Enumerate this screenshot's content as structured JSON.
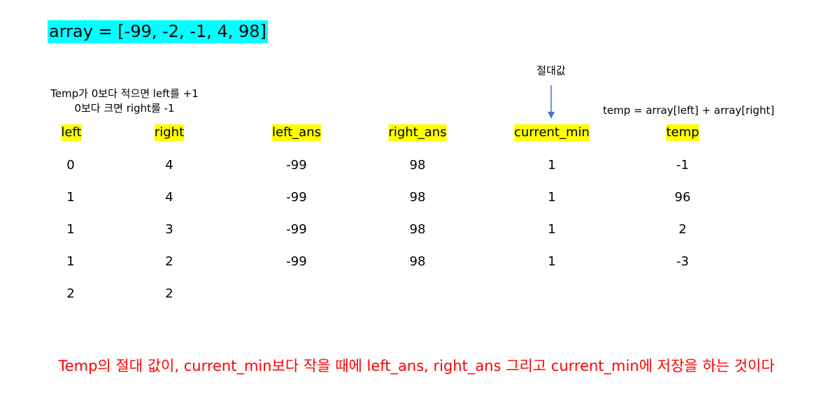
{
  "array_label": "array = [-99, -2, -1, 4, 98]",
  "notes": {
    "left_line1": "Temp가 0보다 적으면 left를 +1",
    "left_line2": "0보다 크면 right를 -1",
    "abs_label": "절대값",
    "temp_formula": "temp = array[left] + array[right]"
  },
  "table": {
    "headers": [
      "left",
      "right",
      "left_ans",
      "right_ans",
      "current_min",
      "temp"
    ],
    "rows": [
      [
        "0",
        "4",
        "-99",
        "98",
        "1",
        "-1"
      ],
      [
        "1",
        "4",
        "-99",
        "98",
        "1",
        "96"
      ],
      [
        "1",
        "3",
        "-99",
        "98",
        "1",
        "2"
      ],
      [
        "1",
        "2",
        "-99",
        "98",
        "1",
        "-3"
      ],
      [
        "2",
        "2",
        "",
        "",
        "",
        ""
      ]
    ]
  },
  "bottom_note": "Temp의 절대 값이, current_min보다 작을 때에 left_ans, right_ans 그리고 current_min에 저장을 하는 것이다",
  "colors": {
    "array_highlight": "#00ffff",
    "header_highlight": "#ffff00",
    "arrow": "#4472c4",
    "note": "#ff0000"
  }
}
